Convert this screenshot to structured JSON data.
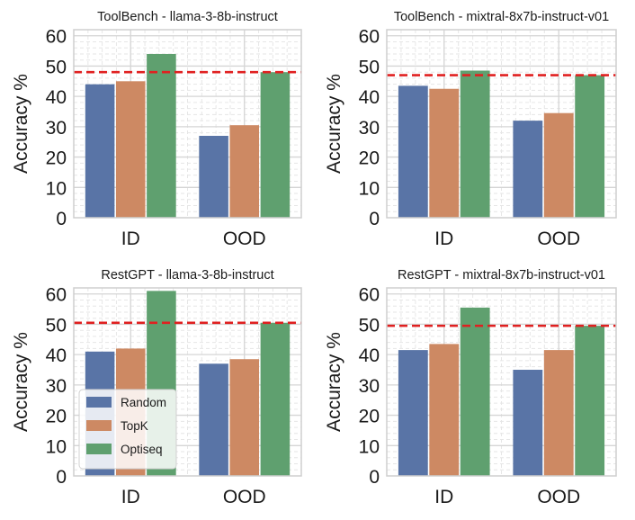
{
  "colors": {
    "random": "#5974a6",
    "topk": "#cd8963",
    "optiseq": "#5fa06f",
    "reference_line": "#e02020",
    "axis_frame": "#cfcfcf",
    "grid_major": "#d5d5d5",
    "grid_minor": "#e6e6e6"
  },
  "chart_data": [
    {
      "type": "bar",
      "title": "ToolBench - llama-3-8b-instruct",
      "xlabel": "",
      "ylabel": "Accuracy %",
      "categories": [
        "ID",
        "OOD"
      ],
      "yticks": [
        "0",
        "10",
        "20",
        "30",
        "40",
        "50",
        "60"
      ],
      "ylim": [
        0,
        62
      ],
      "grid": true,
      "series": [
        {
          "name": "Random",
          "values": [
            44,
            27
          ]
        },
        {
          "name": "TopK",
          "values": [
            45,
            30.5
          ]
        },
        {
          "name": "Optiseq",
          "values": [
            54,
            48
          ]
        }
      ],
      "reference_line": {
        "value": 48,
        "style": "dashed"
      }
    },
    {
      "type": "bar",
      "title": "ToolBench - mixtral-8x7b-instruct-v01",
      "xlabel": "",
      "ylabel": "Accuracy %",
      "categories": [
        "ID",
        "OOD"
      ],
      "yticks": [
        "0",
        "10",
        "20",
        "30",
        "40",
        "50",
        "60"
      ],
      "ylim": [
        0,
        62
      ],
      "grid": true,
      "series": [
        {
          "name": "Random",
          "values": [
            43.5,
            32
          ]
        },
        {
          "name": "TopK",
          "values": [
            42.5,
            34.5
          ]
        },
        {
          "name": "Optiseq",
          "values": [
            48.5,
            47
          ]
        }
      ],
      "reference_line": {
        "value": 47,
        "style": "dashed"
      }
    },
    {
      "type": "bar",
      "title": "RestGPT - llama-3-8b-instruct",
      "xlabel": "",
      "ylabel": "Accuracy %",
      "categories": [
        "ID",
        "OOD"
      ],
      "yticks": [
        "0",
        "10",
        "20",
        "30",
        "40",
        "50",
        "60"
      ],
      "ylim": [
        0,
        62
      ],
      "grid": true,
      "series": [
        {
          "name": "Random",
          "values": [
            41,
            37
          ]
        },
        {
          "name": "TopK",
          "values": [
            42,
            38.5
          ]
        },
        {
          "name": "Optiseq",
          "values": [
            61,
            50.5
          ]
        }
      ],
      "reference_line": {
        "value": 50.5,
        "style": "dashed"
      },
      "legend": {
        "position": "lower-left",
        "entries": [
          "Random",
          "TopK",
          "Optiseq"
        ]
      }
    },
    {
      "type": "bar",
      "title": "RestGPT - mixtral-8x7b-instruct-v01",
      "xlabel": "",
      "ylabel": "Accuracy %",
      "categories": [
        "ID",
        "OOD"
      ],
      "yticks": [
        "0",
        "10",
        "20",
        "30",
        "40",
        "50",
        "60"
      ],
      "ylim": [
        0,
        62
      ],
      "grid": true,
      "series": [
        {
          "name": "Random",
          "values": [
            41.5,
            35
          ]
        },
        {
          "name": "TopK",
          "values": [
            43.5,
            41.5
          ]
        },
        {
          "name": "Optiseq",
          "values": [
            55.5,
            49.5
          ]
        }
      ],
      "reference_line": {
        "value": 49.5,
        "style": "dashed"
      }
    }
  ]
}
